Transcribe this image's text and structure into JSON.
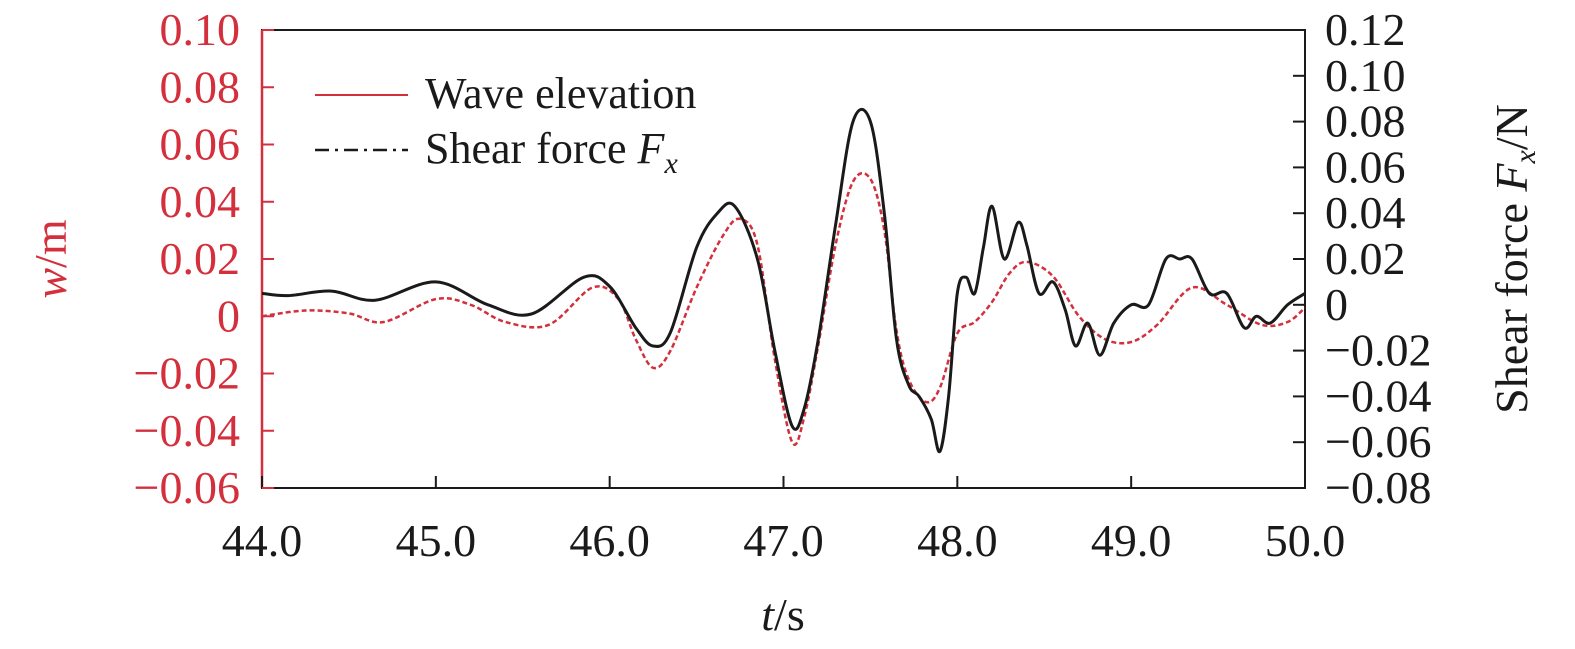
{
  "chart_data": {
    "type": "line",
    "xlabel": {
      "var": "t",
      "unit": "/s"
    },
    "ylabel_left": {
      "var": "w",
      "unit": "/m"
    },
    "ylabel_right": {
      "prefix": "Shear force ",
      "var": "F",
      "sub": "x",
      "unit": "/N"
    },
    "xlim": [
      44.0,
      50.0
    ],
    "ylim_left": [
      -0.06,
      0.1
    ],
    "ylim_right": [
      -0.08,
      0.12
    ],
    "x_ticks": [
      "44.0",
      "45.0",
      "46.0",
      "47.0",
      "48.0",
      "49.0",
      "50.0"
    ],
    "y_left_ticks": [
      "0.10",
      "0.08",
      "0.06",
      "0.04",
      "0.02",
      "0",
      "−0.02",
      "−0.04",
      "−0.06"
    ],
    "y_right_ticks": [
      "0.12",
      "0.10",
      "0.08",
      "0.06",
      "0.04",
      "0.02",
      "0",
      "−0.02",
      "−0.04",
      "−0.06",
      "−0.08"
    ],
    "legend": {
      "position": "top-left",
      "entries": [
        {
          "label": "Wave elevation",
          "style": "solid"
        },
        {
          "label_text": "Shear force ",
          "label_var": "F",
          "label_sub": "x",
          "style": "dash-dot"
        }
      ]
    },
    "series": [
      {
        "name": "Wave elevation",
        "axis": "left",
        "color": "#d42f3c",
        "x": [
          44.0,
          44.25,
          44.5,
          44.7,
          45.0,
          45.2,
          45.4,
          45.65,
          45.9,
          46.05,
          46.15,
          46.25,
          46.35,
          46.5,
          46.65,
          46.75,
          46.85,
          46.95,
          47.05,
          47.12,
          47.2,
          47.3,
          47.4,
          47.5,
          47.58,
          47.65,
          47.72,
          47.82,
          47.9,
          48.0,
          48.1,
          48.2,
          48.3,
          48.4,
          48.55,
          48.7,
          48.85,
          49.0,
          49.15,
          49.35,
          49.55,
          49.75,
          49.9,
          50.0
        ],
        "y": [
          0.0,
          0.002,
          0.001,
          -0.002,
          0.006,
          0.004,
          -0.002,
          -0.003,
          0.01,
          0.006,
          -0.008,
          -0.018,
          -0.012,
          0.01,
          0.028,
          0.034,
          0.025,
          -0.015,
          -0.044,
          -0.035,
          -0.01,
          0.025,
          0.047,
          0.048,
          0.03,
          -0.005,
          -0.022,
          -0.03,
          -0.025,
          -0.006,
          -0.002,
          0.005,
          0.015,
          0.019,
          0.014,
          0.0,
          -0.008,
          -0.009,
          -0.003,
          0.01,
          0.004,
          -0.003,
          -0.002,
          0.003
        ]
      },
      {
        "name": "Shear force Fx",
        "axis": "right",
        "color": "#1a1a1a",
        "x": [
          44.0,
          44.15,
          44.4,
          44.65,
          45.0,
          45.3,
          45.55,
          45.85,
          46.0,
          46.15,
          46.25,
          46.35,
          46.5,
          46.62,
          46.72,
          46.85,
          46.95,
          47.05,
          47.12,
          47.2,
          47.3,
          47.4,
          47.5,
          47.58,
          47.65,
          47.72,
          47.78,
          47.85,
          47.9,
          47.95,
          48.0,
          48.05,
          48.1,
          48.15,
          48.2,
          48.27,
          48.35,
          48.4,
          48.47,
          48.55,
          48.62,
          48.68,
          48.75,
          48.82,
          48.9,
          49.0,
          49.1,
          49.2,
          49.28,
          49.35,
          49.45,
          49.55,
          49.65,
          49.72,
          49.8,
          49.9,
          50.0
        ],
        "y": [
          0.005,
          0.004,
          0.006,
          0.002,
          0.01,
          0.0,
          -0.004,
          0.012,
          0.008,
          -0.01,
          -0.018,
          -0.012,
          0.025,
          0.04,
          0.043,
          0.02,
          -0.02,
          -0.053,
          -0.045,
          -0.015,
          0.035,
          0.08,
          0.08,
          0.04,
          -0.015,
          -0.035,
          -0.04,
          -0.05,
          -0.064,
          -0.04,
          0.005,
          0.012,
          0.005,
          0.025,
          0.043,
          0.02,
          0.036,
          0.026,
          0.005,
          0.01,
          -0.002,
          -0.018,
          -0.008,
          -0.022,
          -0.008,
          0.0,
          0.0,
          0.02,
          0.02,
          0.02,
          0.005,
          0.005,
          -0.01,
          -0.005,
          -0.008,
          0.0,
          0.005
        ]
      }
    ]
  }
}
